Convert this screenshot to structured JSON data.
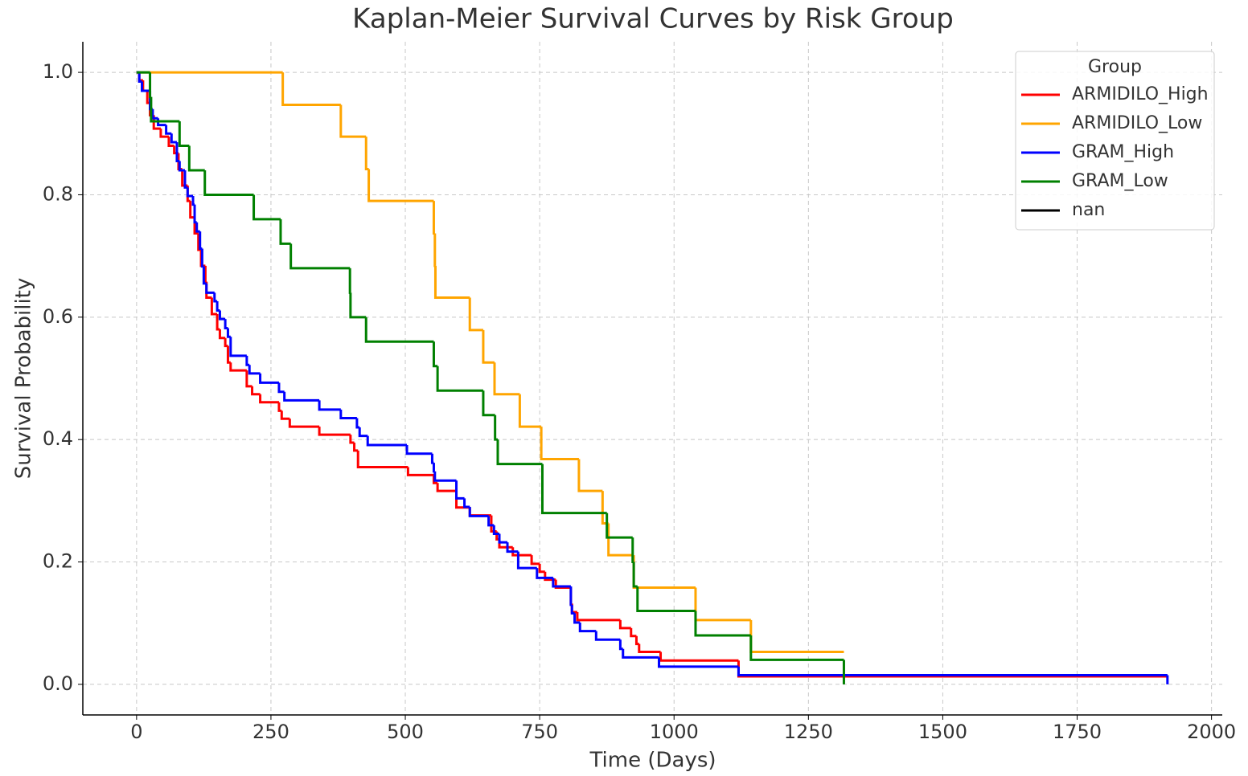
{
  "chart_data": {
    "type": "line",
    "step": "post",
    "title": "Kaplan-Meier Survival Curves by Risk Group",
    "x_label": "Time (Days)",
    "y_label": "Survival Probability",
    "legend_title": "Group",
    "legend": "upper right",
    "grid": true,
    "xlim": [
      -100,
      2020
    ],
    "ylim": [
      -0.05,
      1.05
    ],
    "xticks": [
      0,
      250,
      500,
      750,
      1000,
      1250,
      1500,
      1750,
      2000
    ],
    "yticks": [
      {
        "value": 0,
        "label": "0.0"
      },
      {
        "value": 0.2,
        "label": "0.2"
      },
      {
        "value": 0.4,
        "label": "0.4"
      },
      {
        "value": 0.6,
        "label": "0.6"
      },
      {
        "value": 0.8,
        "label": "0.8"
      },
      {
        "value": 1,
        "label": "1.0"
      }
    ],
    "series": [
      {
        "name": "ARMIDILO_High",
        "color": "#ff0000",
        "x": [
          0,
          5,
          12,
          20,
          25,
          32,
          45,
          60,
          70,
          78,
          85,
          95,
          100,
          108,
          115,
          120,
          128,
          130,
          140,
          150,
          155,
          165,
          170,
          175,
          205,
          215,
          230,
          265,
          270,
          285,
          340,
          398,
          405,
          412,
          505,
          553,
          560,
          595,
          620,
          660,
          670,
          675,
          700,
          735,
          750,
          760,
          780,
          808,
          810,
          820,
          900,
          920,
          930,
          935,
          975,
          1120,
          1918
        ],
        "values": [
          1,
          0.987,
          0.97,
          0.95,
          0.93,
          0.908,
          0.895,
          0.88,
          0.868,
          0.842,
          0.815,
          0.79,
          0.763,
          0.737,
          0.71,
          0.684,
          0.658,
          0.632,
          0.605,
          0.58,
          0.566,
          0.553,
          0.526,
          0.513,
          0.487,
          0.474,
          0.461,
          0.447,
          0.434,
          0.421,
          0.408,
          0.395,
          0.382,
          0.355,
          0.342,
          0.329,
          0.316,
          0.289,
          0.276,
          0.25,
          0.237,
          0.224,
          0.211,
          0.197,
          0.184,
          0.171,
          0.158,
          0.132,
          0.118,
          0.105,
          0.092,
          0.079,
          0.066,
          0.053,
          0.039,
          0.013,
          0.013
        ]
      },
      {
        "name": "ARMIDILO_Low",
        "color": "#ffa500",
        "x": [
          0,
          272,
          380,
          427,
          432,
          553,
          555,
          556,
          620,
          645,
          666,
          713,
          753,
          823,
          867,
          878,
          925,
          1040,
          1143,
          1316
        ],
        "values": [
          1,
          0.947,
          0.895,
          0.842,
          0.79,
          0.737,
          0.684,
          0.632,
          0.579,
          0.526,
          0.474,
          0.421,
          0.368,
          0.316,
          0.263,
          0.211,
          0.158,
          0.105,
          0.053,
          0.053
        ]
      },
      {
        "name": "GRAM_High",
        "color": "#0000ff",
        "x": [
          0,
          5,
          10,
          25,
          30,
          40,
          55,
          65,
          75,
          80,
          90,
          95,
          105,
          108,
          112,
          118,
          122,
          125,
          130,
          145,
          150,
          155,
          165,
          170,
          175,
          205,
          210,
          230,
          265,
          275,
          340,
          380,
          410,
          415,
          430,
          503,
          550,
          553,
          555,
          595,
          610,
          620,
          655,
          665,
          675,
          690,
          710,
          745,
          775,
          808,
          810,
          815,
          825,
          855,
          900,
          905,
          972,
          1120,
          1918
        ],
        "values": [
          1,
          0.985,
          0.97,
          0.94,
          0.925,
          0.914,
          0.9,
          0.886,
          0.855,
          0.84,
          0.812,
          0.798,
          0.784,
          0.755,
          0.74,
          0.712,
          0.683,
          0.655,
          0.64,
          0.626,
          0.611,
          0.597,
          0.582,
          0.568,
          0.537,
          0.522,
          0.508,
          0.493,
          0.478,
          0.464,
          0.449,
          0.435,
          0.42,
          0.406,
          0.391,
          0.377,
          0.362,
          0.348,
          0.333,
          0.304,
          0.29,
          0.275,
          0.26,
          0.246,
          0.232,
          0.217,
          0.19,
          0.174,
          0.16,
          0.13,
          0.116,
          0.101,
          0.087,
          0.073,
          0.058,
          0.044,
          0.029,
          0.015,
          0
        ]
      },
      {
        "name": "GRAM_Low",
        "color": "#008000",
        "x": [
          0,
          25,
          27,
          80,
          98,
          127,
          218,
          268,
          287,
          397,
          398,
          427,
          553,
          560,
          645,
          667,
          672,
          755,
          875,
          923,
          925,
          932,
          1040,
          1143,
          1316
        ],
        "values": [
          1,
          0.96,
          0.92,
          0.88,
          0.84,
          0.8,
          0.76,
          0.72,
          0.68,
          0.64,
          0.6,
          0.56,
          0.52,
          0.48,
          0.44,
          0.4,
          0.36,
          0.28,
          0.24,
          0.2,
          0.16,
          0.12,
          0.08,
          0.04,
          0
        ]
      },
      {
        "name": "nan",
        "color": "#000000",
        "x": [],
        "values": []
      }
    ]
  }
}
